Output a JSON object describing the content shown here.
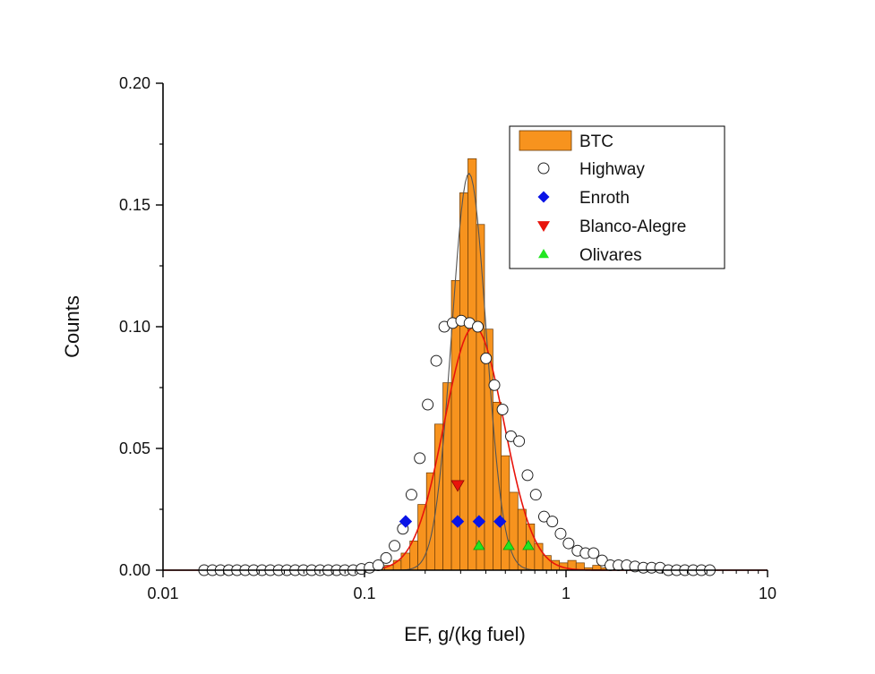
{
  "chart_data": {
    "type": "bar",
    "title": "",
    "xlabel": "EF, g/(kg fuel)",
    "ylabel": "Counts",
    "xscale": "log",
    "xlim": [
      0.01,
      10
    ],
    "ylim": [
      0,
      0.2
    ],
    "x_ticks": [
      {
        "value": 0.01,
        "label": "0.01"
      },
      {
        "value": 0.1,
        "label": "0.1"
      },
      {
        "value": 1,
        "label": "1"
      },
      {
        "value": 10,
        "label": "10"
      }
    ],
    "y_ticks": [
      {
        "value": 0.0,
        "label": "0.00"
      },
      {
        "value": 0.05,
        "label": "0.05"
      },
      {
        "value": 0.1,
        "label": "0.10"
      },
      {
        "value": 0.15,
        "label": "0.15"
      },
      {
        "value": 0.2,
        "label": "0.20"
      }
    ],
    "legend_position": "top-right",
    "series": [
      {
        "name": "BTC",
        "kind": "histogram",
        "color": "#f7931e",
        "bins": [
          {
            "x0": 0.104,
            "x1": 0.115,
            "y": 0.001
          },
          {
            "x0": 0.115,
            "x1": 0.126,
            "y": 0.001
          },
          {
            "x0": 0.126,
            "x1": 0.139,
            "y": 0.002
          },
          {
            "x0": 0.139,
            "x1": 0.152,
            "y": 0.004
          },
          {
            "x0": 0.152,
            "x1": 0.168,
            "y": 0.007
          },
          {
            "x0": 0.168,
            "x1": 0.184,
            "y": 0.012
          },
          {
            "x0": 0.184,
            "x1": 0.203,
            "y": 0.027
          },
          {
            "x0": 0.203,
            "x1": 0.223,
            "y": 0.04
          },
          {
            "x0": 0.223,
            "x1": 0.245,
            "y": 0.06
          },
          {
            "x0": 0.245,
            "x1": 0.27,
            "y": 0.077
          },
          {
            "x0": 0.27,
            "x1": 0.297,
            "y": 0.119
          },
          {
            "x0": 0.297,
            "x1": 0.326,
            "y": 0.155
          },
          {
            "x0": 0.326,
            "x1": 0.359,
            "y": 0.169
          },
          {
            "x0": 0.359,
            "x1": 0.394,
            "y": 0.142
          },
          {
            "x0": 0.394,
            "x1": 0.434,
            "y": 0.099
          },
          {
            "x0": 0.434,
            "x1": 0.477,
            "y": 0.069
          },
          {
            "x0": 0.477,
            "x1": 0.524,
            "y": 0.047
          },
          {
            "x0": 0.524,
            "x1": 0.577,
            "y": 0.032
          },
          {
            "x0": 0.577,
            "x1": 0.634,
            "y": 0.025
          },
          {
            "x0": 0.634,
            "x1": 0.698,
            "y": 0.019
          },
          {
            "x0": 0.698,
            "x1": 0.767,
            "y": 0.011
          },
          {
            "x0": 0.767,
            "x1": 0.844,
            "y": 0.006
          },
          {
            "x0": 0.844,
            "x1": 0.928,
            "y": 0.004
          },
          {
            "x0": 0.928,
            "x1": 1.02,
            "y": 0.003
          },
          {
            "x0": 1.02,
            "x1": 1.122,
            "y": 0.004
          },
          {
            "x0": 1.122,
            "x1": 1.233,
            "y": 0.003
          },
          {
            "x0": 1.233,
            "x1": 1.356,
            "y": 0.001
          },
          {
            "x0": 1.356,
            "x1": 1.491,
            "y": 0.002
          },
          {
            "x0": 1.491,
            "x1": 1.64,
            "y": 0.001
          },
          {
            "x0": 1.64,
            "x1": 1.803,
            "y": 0.0
          },
          {
            "x0": 1.803,
            "x1": 1.983,
            "y": 0.001
          }
        ]
      },
      {
        "name": "Highway",
        "kind": "scatter",
        "marker": "open-circle",
        "x": [
          0.016,
          0.0176,
          0.0193,
          0.0212,
          0.0233,
          0.0256,
          0.0282,
          0.031,
          0.0341,
          0.0375,
          0.0412,
          0.0453,
          0.0498,
          0.0547,
          0.0602,
          0.0661,
          0.0727,
          0.0799,
          0.0879,
          0.0966,
          0.106,
          0.117,
          0.128,
          0.141,
          0.155,
          0.171,
          0.188,
          0.206,
          0.227,
          0.249,
          0.274,
          0.302,
          0.332,
          0.365,
          0.401,
          0.441,
          0.484,
          0.533,
          0.585,
          0.644,
          0.708,
          0.778,
          0.855,
          0.94,
          1.03,
          1.14,
          1.25,
          1.37,
          1.51,
          1.66,
          1.82,
          2.0,
          2.2,
          2.42,
          2.66,
          2.93,
          3.22,
          3.54,
          3.89,
          4.28,
          4.7,
          5.17
        ],
        "y": [
          0.0,
          0.0,
          0.0,
          0.0,
          0.0,
          0.0,
          0.0,
          0.0,
          0.0,
          0.0,
          0.0,
          0.0,
          0.0,
          0.0,
          0.0,
          0.0,
          0.0,
          0.0,
          0.0,
          0.0005,
          0.001,
          0.002,
          0.005,
          0.01,
          0.017,
          0.031,
          0.046,
          0.068,
          0.086,
          0.1,
          0.1015,
          0.1025,
          0.1015,
          0.1,
          0.087,
          0.076,
          0.066,
          0.055,
          0.053,
          0.039,
          0.031,
          0.022,
          0.02,
          0.015,
          0.011,
          0.008,
          0.007,
          0.007,
          0.004,
          0.002,
          0.002,
          0.002,
          0.0015,
          0.001,
          0.001,
          0.001,
          0.0,
          0.0,
          0.0,
          0.0,
          0.0,
          0.0
        ]
      },
      {
        "name": "Enroth",
        "kind": "scatter",
        "marker": "diamond",
        "color": "#0a14e6",
        "x": [
          0.16,
          0.29,
          0.37,
          0.47
        ],
        "y": [
          0.02,
          0.02,
          0.02,
          0.02
        ]
      },
      {
        "name": "Blanco-Alegre",
        "kind": "scatter",
        "marker": "triangle-down",
        "color": "#e8140c",
        "x": [
          0.29
        ],
        "y": [
          0.035
        ]
      },
      {
        "name": "Olivares",
        "kind": "scatter",
        "marker": "triangle-up",
        "color": "#22e622",
        "x": [
          0.37,
          0.52,
          0.65
        ],
        "y": [
          0.01,
          0.01,
          0.01
        ]
      }
    ],
    "fits": [
      {
        "kind": "lognormal-fit",
        "color": "#555555",
        "peak_x": 0.33,
        "peak_y": 0.163,
        "log10_sigma": 0.085
      },
      {
        "kind": "lognormal-fit",
        "color": "#e8140c",
        "peak_x": 0.35,
        "peak_y": 0.1,
        "log10_sigma": 0.148
      }
    ]
  }
}
